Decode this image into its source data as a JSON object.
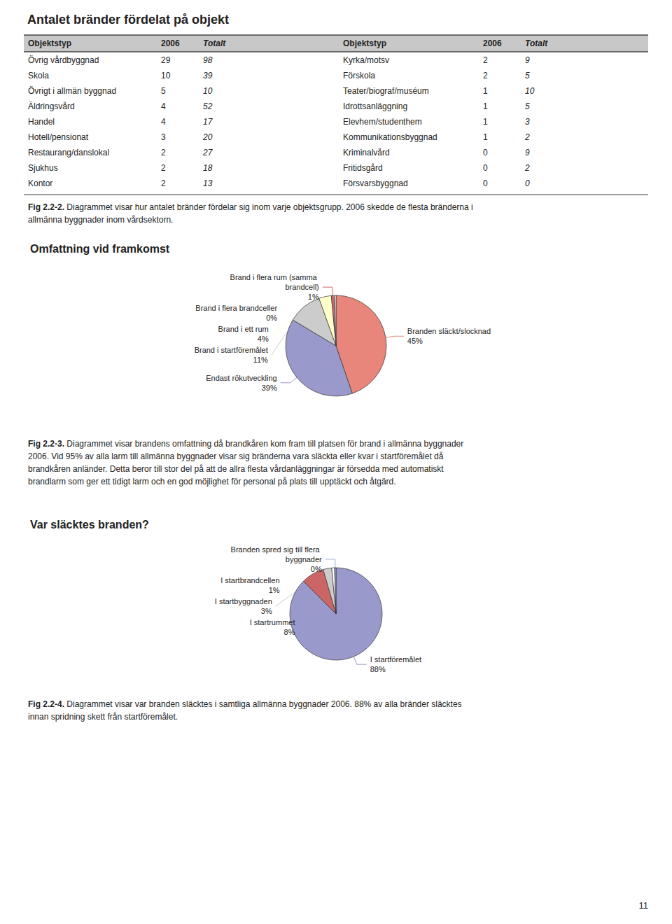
{
  "title": "Antalet bränder fördelat på objekt",
  "table": {
    "headers": [
      "Objektstyp",
      "2006",
      "Totalt",
      "Objektstyp",
      "2006",
      "Totalt"
    ],
    "rows": [
      [
        "Övrig vårdbyggnad",
        29,
        98,
        "Kyrka/motsv",
        2,
        9
      ],
      [
        "Skola",
        10,
        39,
        "Förskola",
        2,
        5
      ],
      [
        "Övrigt i allmän byggnad",
        5,
        10,
        "Teater/biograf/muséum",
        1,
        10
      ],
      [
        "Äldringsvård",
        4,
        52,
        "Idrottsanläggning",
        1,
        5
      ],
      [
        "Handel",
        4,
        17,
        "Elevhem/studenthem",
        1,
        3
      ],
      [
        "Hotell/pensionat",
        3,
        20,
        "Kommunikationsbyggnad",
        1,
        2
      ],
      [
        "Restaurang/danslokal",
        2,
        27,
        "Kriminalvård",
        0,
        9
      ],
      [
        "Sjukhus",
        2,
        18,
        "Fritidsgård",
        0,
        2
      ],
      [
        "Kontor",
        2,
        13,
        "Försvarsbyggnad",
        0,
        0
      ]
    ],
    "annotations": [
      "Fig 2.2-2. Diagrammet visar hur antalet bränder fördelar sig inom varje objektsgrupp. 2006 skedde de flesta bränderna i",
      "allmänna byggnader inom vårdsektorn."
    ]
  },
  "chart_data": [
    {
      "type": "pie",
      "title": "Omfattning vid framkomst",
      "categories": [
        "Branden släckt/slocknad",
        "Endast rökutveckling",
        "Brand i startföremålet",
        "Brand i ett rum",
        "Brand i flera rum (samma brandcell)",
        "Brand i flera brandceller"
      ],
      "values": [
        45,
        39,
        11,
        4,
        1,
        0.5
      ],
      "value_labels": [
        "45%",
        "39%",
        "11%",
        "4%",
        "1%",
        "0%"
      ],
      "colors": [
        "#e8867c",
        "#9999cc",
        "#cccccc",
        "#ffffcc",
        "#cc6666",
        "#ffffff"
      ],
      "data_labels": true,
      "annotations": [
        "Fig 2.2-3. Diagrammet visar brandens omfattning då brandkåren kom fram till platsen för brand i allmänna byggnader",
        "2006. Vid 95% av alla larm till allmänna byggnader visar sig bränderna vara släckta eller kvar i startföremålet då",
        "brandkåren anländer. Detta beror till stor del på att de allra flesta vårdanläggningar är försedda med automatiskt",
        "brandlarm som ger ett tidigt larm och en god möjlighet för personal på plats till upptäckt och åtgärd."
      ]
    },
    {
      "type": "pie",
      "title": "Var släcktes branden?",
      "categories": [
        "I startföremålet",
        "I startrummet",
        "I startbyggnaden",
        "I startbrandcellen",
        "Branden spred sig till flera byggnader"
      ],
      "values": [
        88,
        8,
        3,
        1,
        0.5
      ],
      "value_labels": [
        "88%",
        "8%",
        "3%",
        "1%",
        "0%"
      ],
      "colors": [
        "#9999cc",
        "#cc6666",
        "#cccccc",
        "#ffffff",
        "#aaaadd"
      ],
      "data_labels": true,
      "annotations": [
        "Fig 2.2-4. Diagrammet visar var branden släcktes i samtliga allmänna byggnader 2006. 88% av alla bränder släcktes",
        "innan spridning skett från startföremålet."
      ]
    }
  ],
  "annotations": [
    "11"
  ]
}
